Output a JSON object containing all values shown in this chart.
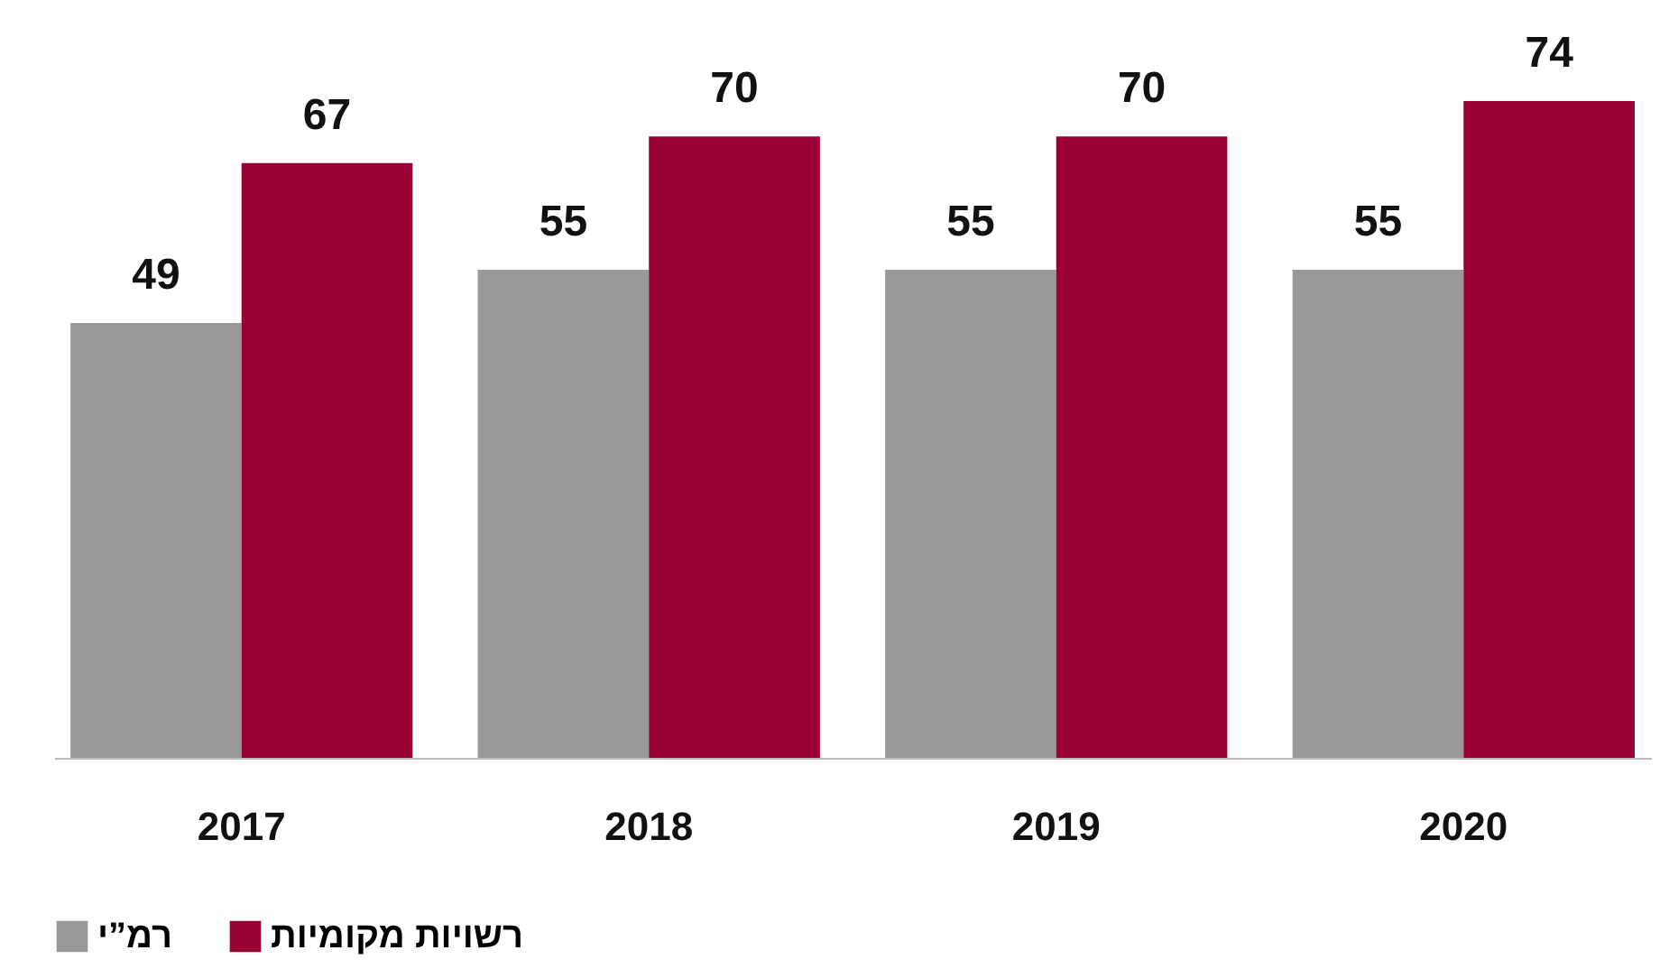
{
  "chart_data": {
    "type": "bar",
    "categories": [
      "2017",
      "2018",
      "2019",
      "2020"
    ],
    "series": [
      {
        "name": "רמ”י",
        "color": "#999999",
        "values": [
          49,
          55,
          55,
          55
        ]
      },
      {
        "name": "רשויות מקומיות",
        "color": "#990033",
        "values": [
          67,
          70,
          70,
          74
        ]
      }
    ],
    "data_labels": true,
    "legend": "bottom",
    "grid": false
  }
}
